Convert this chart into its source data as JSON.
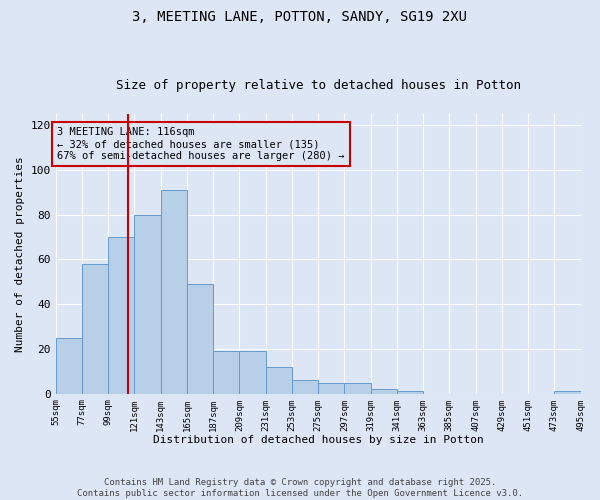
{
  "title": "3, MEETING LANE, POTTON, SANDY, SG19 2XU",
  "subtitle": "Size of property relative to detached houses in Potton",
  "xlabel": "Distribution of detached houses by size in Potton",
  "ylabel": "Number of detached properties",
  "bins": [
    55,
    77,
    99,
    121,
    143,
    165,
    187,
    209,
    231,
    253,
    275,
    297,
    319,
    341,
    363,
    385,
    407,
    429,
    451,
    473,
    495
  ],
  "counts": [
    25,
    58,
    70,
    80,
    91,
    49,
    19,
    19,
    12,
    6,
    5,
    5,
    2,
    1,
    0,
    0,
    0,
    0,
    0,
    1
  ],
  "bar_color": "#b8cfe8",
  "bar_edge_color": "#6699cc",
  "bg_color": "#dce6f5",
  "grid_color": "#ffffff",
  "vline_x": 116,
  "vline_color": "#cc0000",
  "annotation_text": "3 MEETING LANE: 116sqm\n← 32% of detached houses are smaller (135)\n67% of semi-detached houses are larger (280) →",
  "annotation_box_color": "#cc0000",
  "ylim": [
    0,
    125
  ],
  "yticks": [
    0,
    20,
    40,
    60,
    80,
    100,
    120
  ],
  "tick_labels": [
    "55sqm",
    "77sqm",
    "99sqm",
    "121sqm",
    "143sqm",
    "165sqm",
    "187sqm",
    "209sqm",
    "231sqm",
    "253sqm",
    "275sqm",
    "297sqm",
    "319sqm",
    "341sqm",
    "363sqm",
    "385sqm",
    "407sqm",
    "429sqm",
    "451sqm",
    "473sqm",
    "495sqm"
  ],
  "footer": "Contains HM Land Registry data © Crown copyright and database right 2025.\nContains public sector information licensed under the Open Government Licence v3.0.",
  "title_fontsize": 10,
  "subtitle_fontsize": 9,
  "annot_fontsize": 7.5
}
